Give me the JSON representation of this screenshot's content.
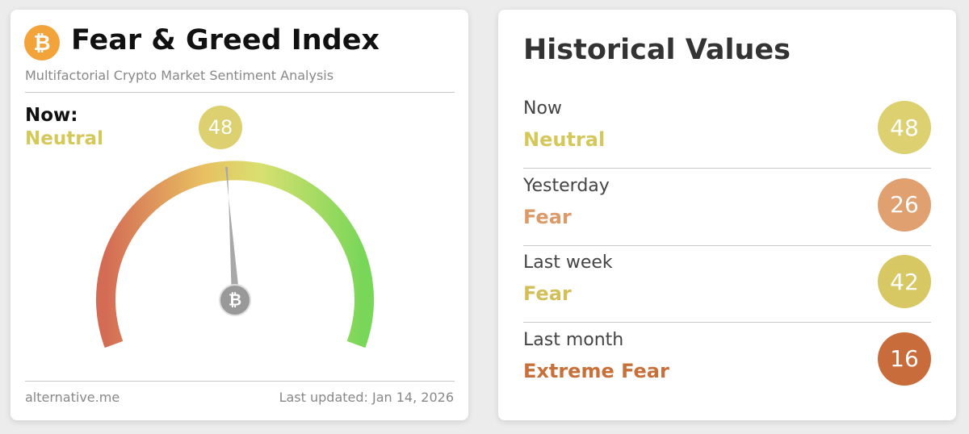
{
  "logo_glyph": "₿",
  "gauge_card": {
    "title": "Fear & Greed Index",
    "subtitle": "Multifactorial Crypto Market Sentiment Analysis",
    "now_label": "Now:",
    "classification": "Neutral",
    "classification_color": "#d5c85a",
    "value": 48,
    "value_color": "#dcd070",
    "source": "alternative.me",
    "updated": "Last updated: Jan 14, 2026"
  },
  "history_card": {
    "title": "Historical Values",
    "rows": [
      {
        "label": "Now",
        "classification": "Neutral",
        "value": 48,
        "color": "#d5c85a",
        "badge_color": "#dcd070"
      },
      {
        "label": "Yesterday",
        "classification": "Fear",
        "value": 26,
        "color": "#dc9a68",
        "badge_color": "#e0a070"
      },
      {
        "label": "Last week",
        "classification": "Fear",
        "value": 42,
        "color": "#d3bf5a",
        "badge_color": "#d8c864"
      },
      {
        "label": "Last month",
        "classification": "Extreme Fear",
        "value": 16,
        "color": "#c8703a",
        "badge_color": "#c86c3c"
      }
    ]
  }
}
